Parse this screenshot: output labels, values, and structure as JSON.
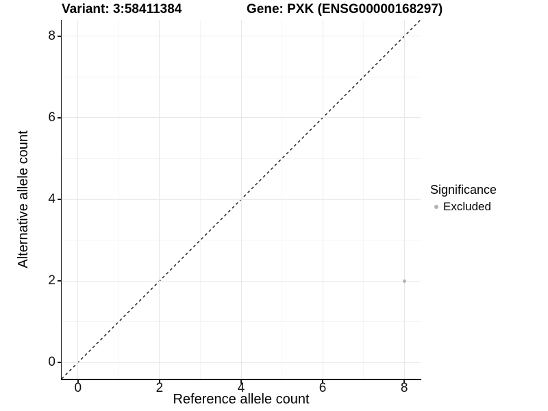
{
  "chart_data": {
    "type": "scatter",
    "titles": {
      "left": "Variant: 3:58411384",
      "right": "Gene: PXK (ENSG00000168297)"
    },
    "xlabel": "Reference allele count",
    "ylabel": "Alternative allele count",
    "xlim": [
      -0.4,
      8.4
    ],
    "ylim": [
      -0.4,
      8.4
    ],
    "x_ticks": [
      0,
      2,
      4,
      6,
      8
    ],
    "y_ticks": [
      0,
      2,
      4,
      6,
      8
    ],
    "x_minor_ticks": [
      1,
      3,
      5,
      7
    ],
    "y_minor_ticks": [
      1,
      3,
      5,
      7
    ],
    "grid": "major+minor",
    "legend_position": "right",
    "reference_line": {
      "kind": "identity y=x",
      "style": "dashed",
      "color": "#000000"
    },
    "series": [
      {
        "name": "Excluded",
        "color": "#b3b3b3",
        "marker": "circle",
        "points": [
          [
            8,
            2
          ]
        ]
      }
    ],
    "legend": {
      "title": "Significance",
      "items": [
        {
          "label": "Excluded",
          "color": "#b3b3b3"
        }
      ]
    }
  },
  "colors": {
    "background": "#ffffff",
    "grid_major": "#e8e8e8",
    "grid_minor": "#f4f4f4",
    "axis": "#1a1a1a",
    "point": "#b3b3b3",
    "reference_line": "#000000"
  }
}
